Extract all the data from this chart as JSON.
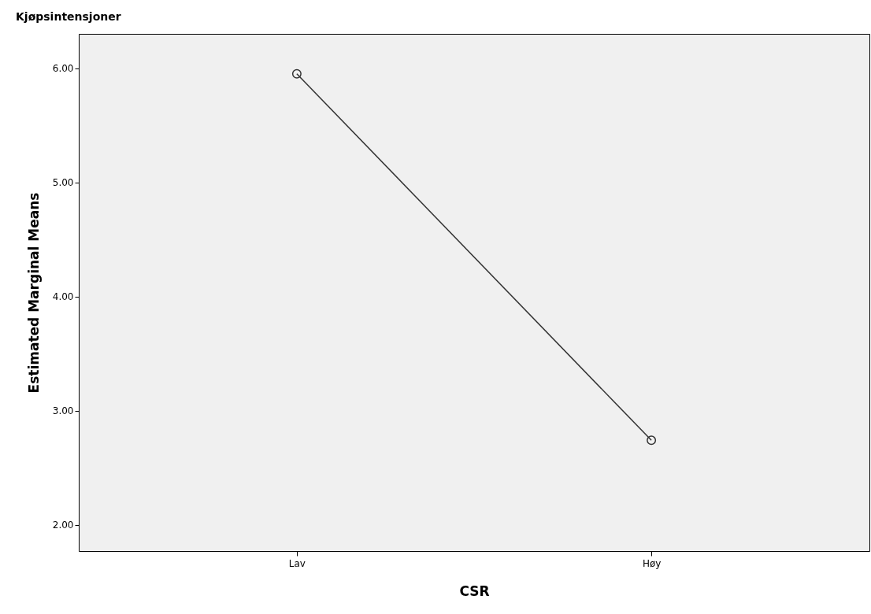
{
  "chart_data": {
    "type": "line",
    "title": "Kjøpsintensjoner",
    "xlabel": "CSR",
    "ylabel": "Estimated Marginal Means",
    "categories": [
      "Lav",
      "Høy"
    ],
    "series": [
      {
        "color": "#333333",
        "values": [
          5.95,
          2.74
        ]
      }
    ],
    "ylim": [
      1.77,
      6.3
    ],
    "yticks": [
      {
        "value": 2,
        "label": "2.00"
      },
      {
        "value": 3,
        "label": "3.00"
      },
      {
        "value": 4,
        "label": "4.00"
      },
      {
        "value": 5,
        "label": "5.00"
      },
      {
        "value": 6,
        "label": "6.00"
      }
    ],
    "grid": false,
    "legend": false,
    "marker": "circle",
    "line_style": "solid"
  }
}
